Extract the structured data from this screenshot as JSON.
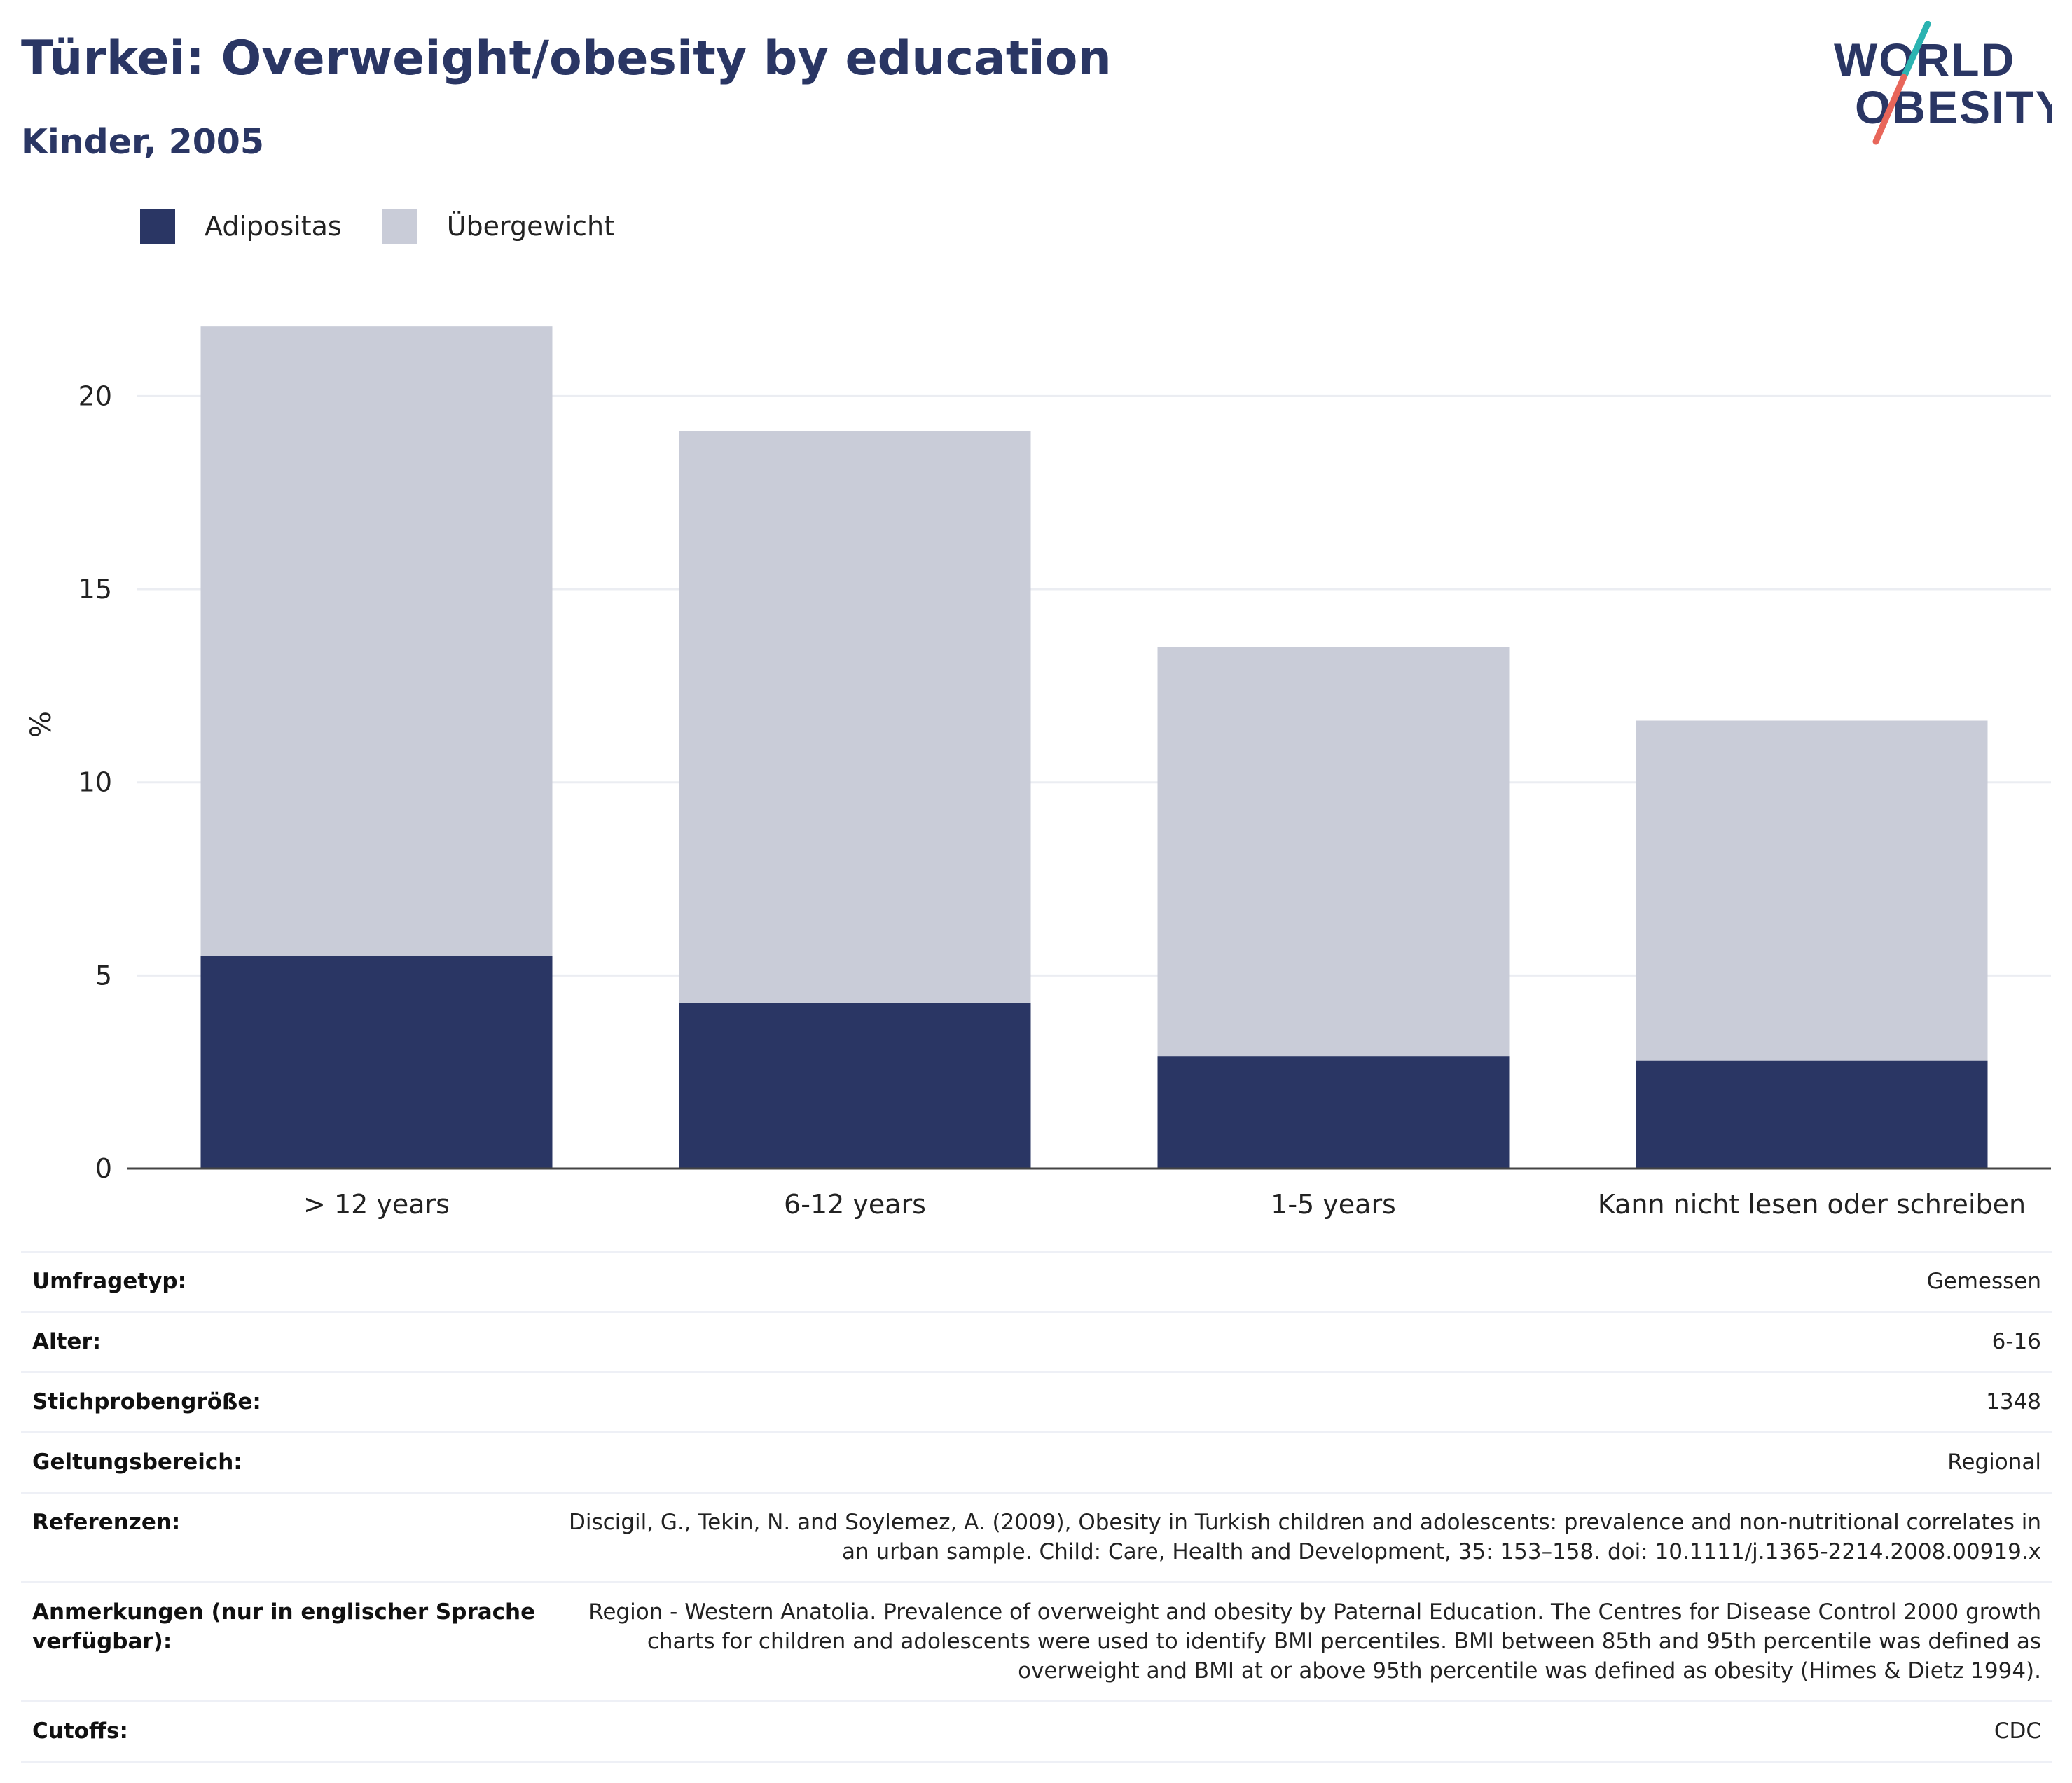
{
  "header": {
    "title": "Türkei: Overweight/obesity by education",
    "subtitle": "Kinder, 2005"
  },
  "logo": {
    "line1": "WORLD",
    "line2": "OBESITY"
  },
  "chart_data": {
    "type": "bar",
    "stacked": true,
    "categories": [
      "> 12 years",
      "6-12 years",
      "1-5 years",
      "Kann nicht lesen oder schreiben"
    ],
    "series": [
      {
        "name": "Adipositas",
        "color": "#2a3664",
        "values": [
          5.5,
          4.3,
          2.9,
          2.8
        ]
      },
      {
        "name": "Übergewicht",
        "color": "#c9ccd8",
        "values": [
          16.3,
          14.8,
          10.6,
          8.8
        ]
      }
    ],
    "ylabel": "%",
    "xlabel": "",
    "ylim": [
      0,
      23
    ],
    "yticks": [
      0,
      5,
      10,
      15,
      20
    ],
    "grid": true,
    "legend_position": "top-left"
  },
  "details": [
    {
      "label": "Umfragetyp:",
      "value": "Gemessen"
    },
    {
      "label": "Alter:",
      "value": "6-16"
    },
    {
      "label": "Stichprobengröße:",
      "value": "1348"
    },
    {
      "label": "Geltungsbereich:",
      "value": "Regional"
    },
    {
      "label": "Referenzen:",
      "value": "Discigil, G., Tekin, N. and Soylemez, A. (2009), Obesity in Turkish children and adolescents: prevalence and non-nutritional correlates in an urban sample. Child: Care, Health and Development, 35: 153–158. doi: 10.1111/j.1365-2214.2008.00919.x"
    },
    {
      "label": "Anmerkungen (nur in englischer Sprache verfügbar):",
      "value": "Region - Western Anatolia. Prevalence of overweight and obesity by Paternal Education. The Centres for Disease Control 2000 growth charts for children and adolescents were used to identify BMI percentiles. BMI between 85th and 95th percentile was defined as overweight and BMI at or above 95th percentile was defined as obesity (Himes & Dietz 1994)."
    },
    {
      "label": "Cutoffs:",
      "value": "CDC"
    }
  ]
}
